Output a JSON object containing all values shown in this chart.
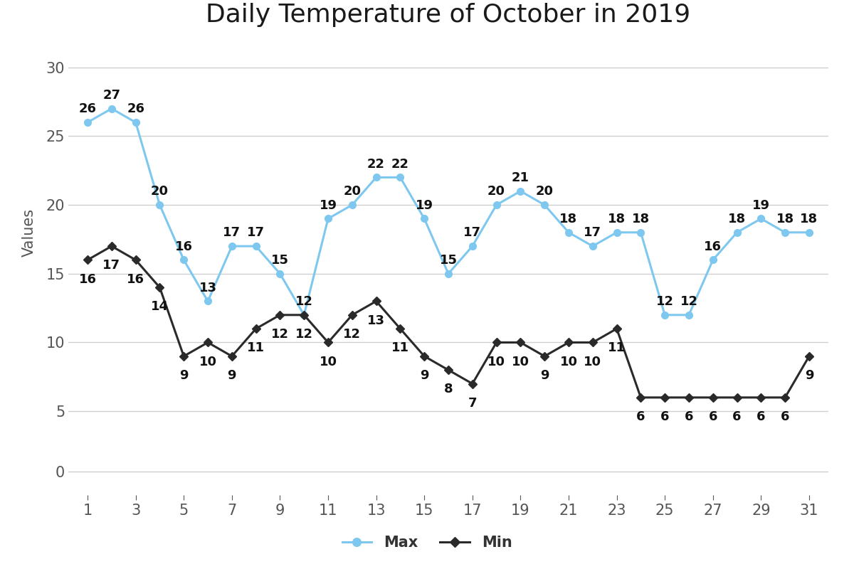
{
  "title": "Daily Temperature of October in 2019",
  "ylabel": "Values",
  "days": [
    1,
    2,
    3,
    4,
    5,
    6,
    7,
    8,
    9,
    10,
    11,
    12,
    13,
    14,
    15,
    16,
    17,
    18,
    19,
    20,
    21,
    22,
    23,
    24,
    25,
    26,
    27,
    28,
    29,
    30,
    31
  ],
  "max_values": [
    26,
    27,
    26,
    20,
    16,
    13,
    17,
    17,
    15,
    12,
    19,
    20,
    22,
    22,
    19,
    15,
    17,
    20,
    21,
    20,
    18,
    17,
    18,
    18,
    12,
    12,
    16,
    18,
    19,
    18,
    18
  ],
  "min_values": [
    16,
    17,
    16,
    14,
    9,
    10,
    9,
    11,
    12,
    12,
    10,
    12,
    13,
    11,
    9,
    8,
    7,
    10,
    10,
    9,
    10,
    10,
    11,
    6,
    6,
    6,
    6,
    6,
    6,
    6,
    9
  ],
  "max_color": "#7ec8f0",
  "min_color": "#2a2a2a",
  "annotation_color": "#111111",
  "max_label": "Max",
  "min_label": "Min",
  "upper_ylim": [
    4,
    32
  ],
  "upper_yticks": [
    5,
    10,
    15,
    20,
    25,
    30
  ],
  "lower_ylim": [
    -1,
    2
  ],
  "lower_yticks": [
    0
  ],
  "xticks": [
    1,
    3,
    5,
    7,
    9,
    11,
    13,
    15,
    17,
    19,
    21,
    23,
    25,
    27,
    29,
    31
  ],
  "title_fontsize": 26,
  "label_fontsize": 15,
  "tick_fontsize": 15,
  "annotation_fontsize": 13,
  "legend_fontsize": 15,
  "line_width": 2.2,
  "marker_size": 7,
  "background_color": "#ffffff",
  "grid_color": "#d0d0d0"
}
